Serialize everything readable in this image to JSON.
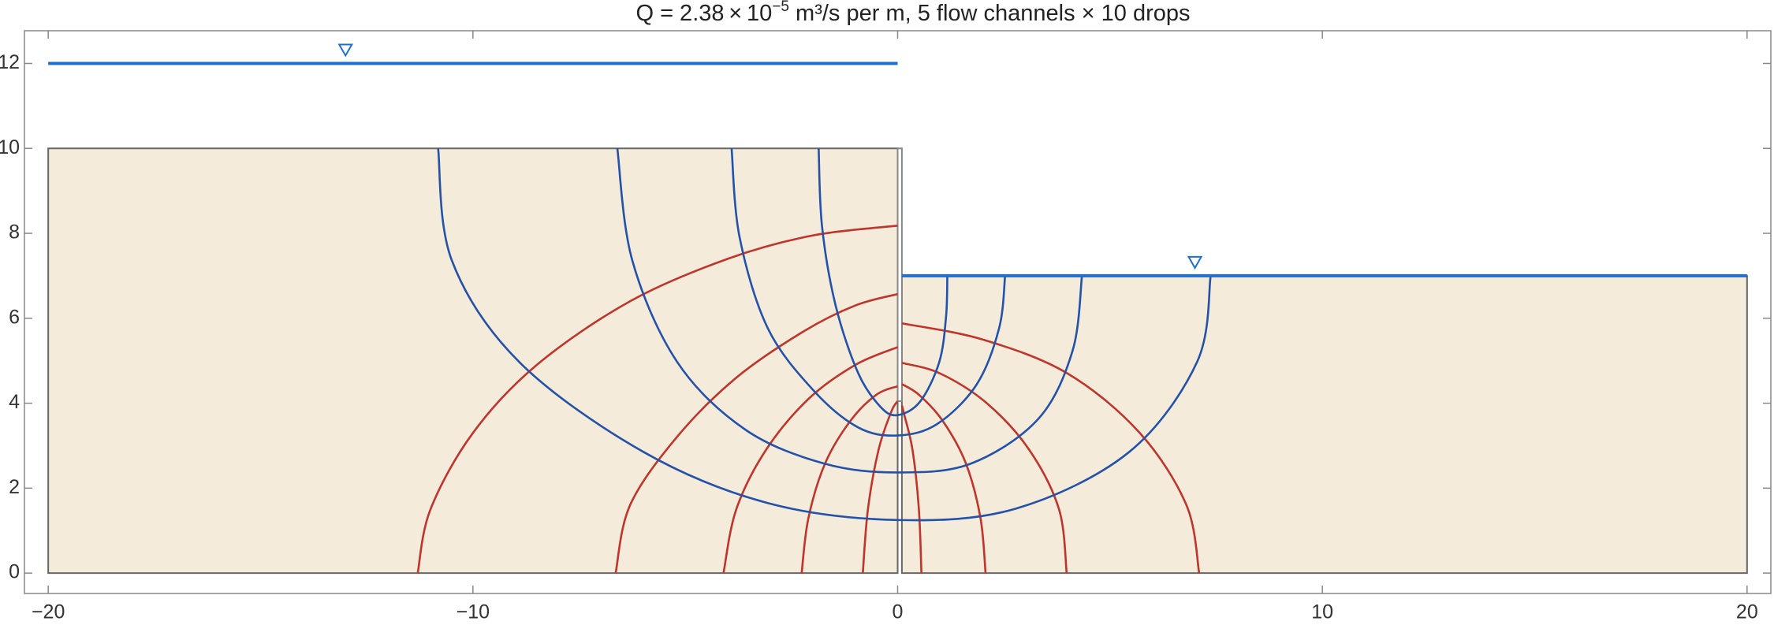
{
  "chart_data": {
    "type": "flownet",
    "title": [
      "Q = 2.38 × 10",
      "−5",
      " m³/s per m,   5 flow channels × 10 drops"
    ],
    "xlim": [
      -20.56,
      20.56
    ],
    "ylim": [
      -0.48,
      12.77
    ],
    "xticks": [
      {
        "value": -20,
        "label": "−20"
      },
      {
        "value": -10,
        "label": "−10"
      },
      0,
      10,
      20
    ],
    "yticks": [
      0,
      2,
      4,
      6,
      8,
      10,
      12
    ],
    "soil_color": "#f5ebdb",
    "soil": [
      {
        "x": [
          -20,
          0
        ],
        "y": [
          0,
          10
        ]
      },
      {
        "x": [
          0.1,
          20
        ],
        "y": [
          0,
          7
        ]
      }
    ],
    "sheet_pile": {
      "x": [
        0,
        0.1
      ],
      "y": [
        4.05,
        10
      ]
    },
    "water_color": "#1f6fd1",
    "water_levels": [
      {
        "x": [
          -20,
          0
        ],
        "y": 12,
        "marker": -13
      },
      {
        "x": [
          0.1,
          20
        ],
        "y": 7,
        "marker": 7
      }
    ],
    "flow_line_color": "#2352a8",
    "flow_lines": [
      {
        "x": [
          -1.86,
          -1.78,
          -1.46,
          -0.93,
          -0.4,
          0,
          0.53,
          0.98,
          1.14,
          1.17
        ],
        "y": [
          10,
          8.16,
          6.3,
          4.71,
          3.91,
          3.72,
          4.04,
          4.97,
          6.04,
          7
        ]
      },
      {
        "x": [
          -3.91,
          -3.72,
          -3.06,
          -1.99,
          -0.93,
          0,
          0.93,
          1.86,
          2.39,
          2.53
        ],
        "y": [
          10,
          7.9,
          5.77,
          4.31,
          3.43,
          3.24,
          3.51,
          4.44,
          5.77,
          7
        ]
      },
      {
        "x": [
          -6.6,
          -6.25,
          -5.19,
          -3.59,
          -1.73,
          0,
          1.73,
          3.32,
          4.12,
          4.34
        ],
        "y": [
          10,
          7.37,
          4.97,
          3.38,
          2.58,
          2.37,
          2.58,
          3.64,
          5.24,
          7
        ]
      },
      {
        "x": [
          -10.82,
          -10.5,
          -8.91,
          -5.98,
          -3.06,
          0,
          2.79,
          5.45,
          7.05,
          7.37
        ],
        "y": [
          10,
          7.37,
          4.97,
          2.85,
          1.65,
          1.25,
          1.52,
          2.85,
          4.97,
          7
        ]
      }
    ],
    "equipotential_color": "#c0352b",
    "equipotentials": [
      {
        "x": [
          -11.3,
          -11.0,
          -10.0,
          -8.5,
          -6.3,
          -4,
          -2,
          0
        ],
        "y": [
          0,
          1.5,
          3.3,
          4.9,
          6.4,
          7.4,
          7.95,
          8.18
        ]
      },
      {
        "x": [
          -6.64,
          -6.3,
          -5.2,
          -3.8,
          -2.2,
          -1,
          0
        ],
        "y": [
          0,
          1.6,
          3.2,
          4.6,
          5.7,
          6.3,
          6.57
        ]
      },
      {
        "x": [
          -4.1,
          -3.8,
          -3.1,
          -2.1,
          -1,
          0
        ],
        "y": [
          0,
          1.5,
          2.9,
          4.1,
          4.9,
          5.32
        ]
      },
      {
        "x": [
          -2.26,
          -2.1,
          -1.7,
          -1.1,
          -0.5,
          0
        ],
        "y": [
          0,
          1.3,
          2.6,
          3.6,
          4.2,
          4.4
        ]
      },
      {
        "x": [
          -0.82,
          -0.7,
          -0.45,
          -0.15,
          0
        ],
        "y": [
          0,
          1.5,
          2.9,
          3.8,
          4.05
        ]
      },
      {
        "x": [
          0.56,
          0.5,
          0.35,
          0.15,
          0.1
        ],
        "y": [
          0,
          1.5,
          2.9,
          3.75,
          3.95
        ]
      },
      {
        "x": [
          2.07,
          1.95,
          1.6,
          1.05,
          0.5,
          0.1
        ],
        "y": [
          0,
          1.3,
          2.6,
          3.6,
          4.2,
          4.45
        ]
      },
      {
        "x": [
          3.98,
          3.8,
          3.1,
          2.1,
          1.0,
          0.1
        ],
        "y": [
          0,
          1.5,
          2.9,
          4.0,
          4.7,
          4.95
        ]
      },
      {
        "x": [
          7.1,
          6.8,
          5.7,
          4.0,
          2.0,
          0.1
        ],
        "y": [
          0,
          1.6,
          3.3,
          4.7,
          5.5,
          5.88
        ]
      }
    ]
  }
}
